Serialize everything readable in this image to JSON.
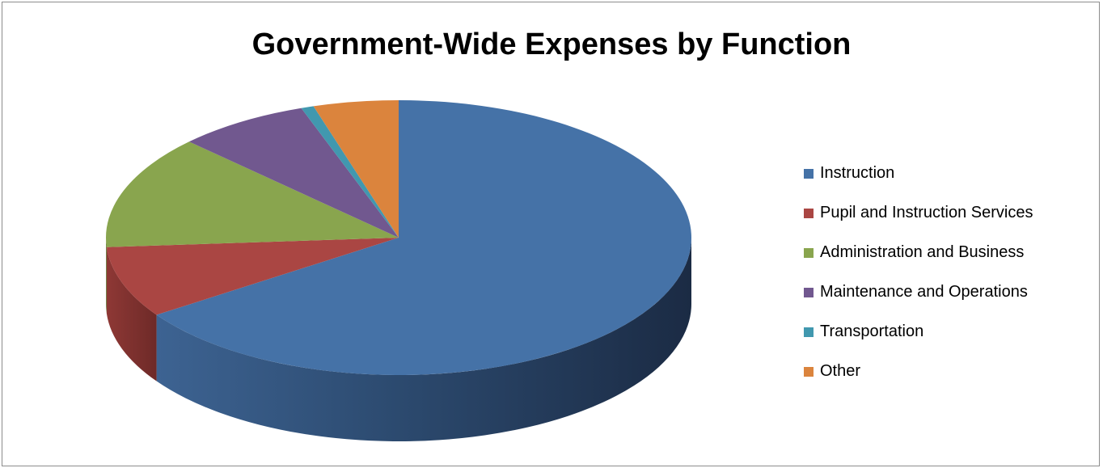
{
  "chart_data": {
    "type": "pie",
    "title": "Government-Wide Expenses by Function",
    "categories": [
      "Instruction",
      "Pupil and Instruction Services",
      "Administration and Business",
      "Maintenance and Operations",
      "Transportation",
      "Other"
    ],
    "values": [
      65.5,
      8.4,
      13.4,
      7.3,
      0.7,
      4.7
    ],
    "colors": [
      "#4572a7",
      "#aa4643",
      "#89a54e",
      "#71588f",
      "#4198af",
      "#db843d"
    ],
    "legend_position": "right",
    "style": "3d"
  }
}
